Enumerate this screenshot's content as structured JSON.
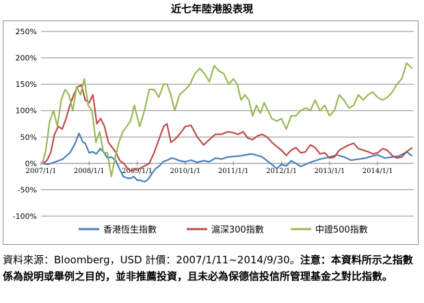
{
  "title": "近七年陸港股表現",
  "footnote": {
    "source": "資料來源：Bloomberg，USD 計價：2007/1/11~2014/9/30。",
    "disclaimer": "注意：本資料所示之指數係為說明或舉例之目的，並非推薦投資，且未必為保德信投信所管理基金之對比指數。"
  },
  "chart_data": {
    "type": "line",
    "title": "近七年陸港股表現",
    "xlabel": "",
    "ylabel": "",
    "ylim": [
      -100,
      250
    ],
    "yticks": [
      "250%",
      "200%",
      "150%",
      "100%",
      "50%",
      "0%",
      "-50%",
      "-100%"
    ],
    "ytick_values": [
      250,
      200,
      150,
      100,
      50,
      0,
      -50,
      -100
    ],
    "xlim": [
      2007.0,
      2014.75
    ],
    "xticks": [
      "2007/1/1",
      "2008/1/1",
      "2009/1/1",
      "2010/1/1",
      "2011/1/1",
      "2012/1/1",
      "2013/1/1",
      "2014/1/1"
    ],
    "xtick_values": [
      2007,
      2008,
      2009,
      2010,
      2011,
      2012,
      2013,
      2014
    ],
    "grid": "horizontal",
    "legend": "bottom",
    "series": [
      {
        "name": "香港恆生指數",
        "color": "#4a7ebb",
        "x": [
          2007.03,
          2007.15,
          2007.3,
          2007.45,
          2007.6,
          2007.7,
          2007.79,
          2007.87,
          2007.92,
          2008.0,
          2008.07,
          2008.15,
          2008.23,
          2008.3,
          2008.38,
          2008.46,
          2008.55,
          2008.63,
          2008.71,
          2008.8,
          2008.87,
          2008.93,
          2009.0,
          2009.07,
          2009.15,
          2009.23,
          2009.3,
          2009.38,
          2009.46,
          2009.55,
          2009.63,
          2009.71,
          2009.8,
          2009.88,
          2010.0,
          2010.12,
          2010.25,
          2010.38,
          2010.5,
          2010.63,
          2010.75,
          2010.88,
          2011.0,
          2011.12,
          2011.25,
          2011.38,
          2011.5,
          2011.6,
          2011.7,
          2011.8,
          2011.9,
          2012.0,
          2012.1,
          2012.2,
          2012.3,
          2012.4,
          2012.5,
          2012.6,
          2012.7,
          2012.8,
          2012.9,
          2013.0,
          2013.15,
          2013.3,
          2013.45,
          2013.6,
          2013.75,
          2013.9,
          2014.0,
          2014.15,
          2014.3,
          2014.45,
          2014.6,
          2014.72
        ],
        "values": [
          0,
          -2,
          3,
          8,
          20,
          36,
          57,
          40,
          38,
          20,
          22,
          18,
          28,
          22,
          10,
          12,
          6,
          -10,
          -25,
          -28,
          -28,
          -25,
          -32,
          -32,
          -35,
          -30,
          -20,
          -10,
          -5,
          4,
          6,
          10,
          8,
          5,
          3,
          6,
          2,
          5,
          3,
          10,
          8,
          12,
          13,
          14,
          16,
          18,
          15,
          12,
          5,
          -2,
          -10,
          -2,
          -5,
          5,
          0,
          -6,
          -2,
          2,
          5,
          8,
          10,
          12,
          16,
          12,
          6,
          8,
          10,
          14,
          16,
          10,
          12,
          14,
          22,
          14
        ]
      },
      {
        "name": "滬深300指數",
        "color": "#be4b48",
        "x": [
          2007.03,
          2007.12,
          2007.2,
          2007.28,
          2007.36,
          2007.44,
          2007.52,
          2007.6,
          2007.68,
          2007.76,
          2007.84,
          2007.92,
          2008.0,
          2008.08,
          2008.16,
          2008.24,
          2008.32,
          2008.4,
          2008.48,
          2008.56,
          2008.64,
          2008.72,
          2008.8,
          2008.88,
          2008.95,
          2009.05,
          2009.15,
          2009.25,
          2009.35,
          2009.45,
          2009.55,
          2009.62,
          2009.7,
          2009.78,
          2009.88,
          2010.0,
          2010.12,
          2010.25,
          2010.38,
          2010.5,
          2010.62,
          2010.75,
          2010.88,
          2011.0,
          2011.1,
          2011.2,
          2011.3,
          2011.4,
          2011.5,
          2011.6,
          2011.7,
          2011.8,
          2011.9,
          2012.0,
          2012.1,
          2012.2,
          2012.3,
          2012.4,
          2012.5,
          2012.6,
          2012.7,
          2012.8,
          2012.9,
          2013.0,
          2013.1,
          2013.2,
          2013.3,
          2013.4,
          2013.5,
          2013.6,
          2013.7,
          2013.8,
          2013.9,
          2014.0,
          2014.1,
          2014.2,
          2014.3,
          2014.4,
          2014.5,
          2014.6,
          2014.72
        ],
        "values": [
          0,
          5,
          20,
          55,
          70,
          65,
          85,
          110,
          130,
          145,
          148,
          120,
          115,
          130,
          75,
          85,
          70,
          40,
          30,
          20,
          5,
          0,
          -10,
          -15,
          -10,
          -10,
          -5,
          0,
          20,
          45,
          70,
          75,
          40,
          45,
          55,
          70,
          72,
          50,
          35,
          45,
          55,
          55,
          60,
          58,
          55,
          60,
          48,
          45,
          52,
          55,
          50,
          40,
          32,
          25,
          15,
          25,
          30,
          20,
          22,
          35,
          30,
          18,
          20,
          10,
          12,
          25,
          30,
          35,
          38,
          28,
          25,
          22,
          18,
          20,
          28,
          25,
          15,
          10,
          12,
          22,
          30
        ]
      },
      {
        "name": "中證500指數",
        "color": "#98b954",
        "x": [
          2007.03,
          2007.1,
          2007.18,
          2007.26,
          2007.34,
          2007.42,
          2007.5,
          2007.58,
          2007.66,
          2007.74,
          2007.82,
          2007.9,
          2007.98,
          2008.06,
          2008.14,
          2008.22,
          2008.3,
          2008.38,
          2008.46,
          2008.54,
          2008.62,
          2008.7,
          2008.78,
          2008.86,
          2008.94,
          2009.05,
          2009.15,
          2009.25,
          2009.35,
          2009.45,
          2009.55,
          2009.62,
          2009.7,
          2009.78,
          2009.88,
          2010.0,
          2010.1,
          2010.2,
          2010.3,
          2010.4,
          2010.5,
          2010.6,
          2010.7,
          2010.8,
          2010.9,
          2011.0,
          2011.08,
          2011.16,
          2011.24,
          2011.32,
          2011.4,
          2011.48,
          2011.56,
          2011.64,
          2011.72,
          2011.8,
          2011.9,
          2012.0,
          2012.1,
          2012.2,
          2012.3,
          2012.4,
          2012.5,
          2012.6,
          2012.7,
          2012.8,
          2012.9,
          2013.0,
          2013.1,
          2013.2,
          2013.3,
          2013.4,
          2013.5,
          2013.6,
          2013.7,
          2013.8,
          2013.9,
          2014.0,
          2014.1,
          2014.2,
          2014.3,
          2014.4,
          2014.5,
          2014.6,
          2014.72
        ],
        "values": [
          0,
          25,
          80,
          100,
          70,
          120,
          140,
          130,
          100,
          145,
          130,
          160,
          110,
          100,
          40,
          60,
          20,
          20,
          -25,
          10,
          40,
          60,
          70,
          80,
          110,
          70,
          100,
          140,
          140,
          125,
          150,
          150,
          130,
          100,
          130,
          140,
          150,
          170,
          180,
          170,
          155,
          185,
          175,
          170,
          150,
          160,
          150,
          120,
          130,
          120,
          90,
          110,
          95,
          115,
          100,
          85,
          80,
          85,
          65,
          90,
          90,
          100,
          105,
          100,
          120,
          100,
          110,
          90,
          100,
          130,
          120,
          105,
          110,
          130,
          120,
          130,
          135,
          125,
          120,
          125,
          135,
          150,
          160,
          190,
          180
        ]
      }
    ]
  }
}
